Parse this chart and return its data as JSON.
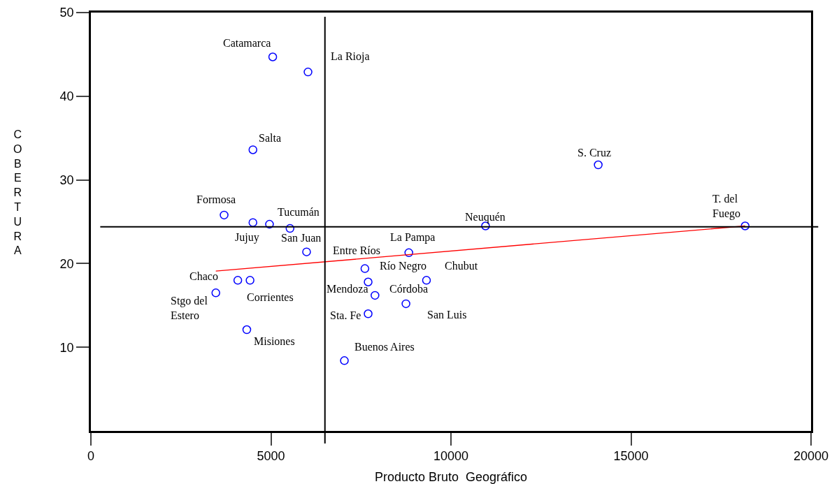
{
  "chart_data": {
    "type": "scatter",
    "xlabel": "Producto Bruto  Geográfico",
    "ylabel": "COBERTURA",
    "xlim": [
      0,
      20000
    ],
    "xticks": [
      0,
      5000,
      10000,
      15000,
      20000
    ],
    "ylim": [
      0,
      50
    ],
    "yticks": [
      10,
      20,
      30,
      40,
      50
    ],
    "grid": false,
    "series": [
      {
        "marker": "circle",
        "color": "#0000ff",
        "x": [
          5050,
          6030,
          4500,
          14090,
          3700,
          4960,
          4500,
          5530,
          10960,
          18170,
          5990,
          8830,
          7610,
          9320,
          4080,
          4420,
          7700,
          7890,
          3470,
          8750,
          7700,
          4330,
          7040
        ],
        "values": [
          44.7,
          42.9,
          33.6,
          31.8,
          25.8,
          24.7,
          24.9,
          24.2,
          24.5,
          24.5,
          21.4,
          21.3,
          19.4,
          18.0,
          18.0,
          18.0,
          17.8,
          16.2,
          16.5,
          15.2,
          14.0,
          12.1,
          8.4
        ]
      },
      {
        "type": "line",
        "color": "#ff0000",
        "x": [
          3470,
          18170
        ],
        "values": [
          19.1,
          24.5
        ]
      }
    ],
    "ref_lines": [
      {
        "axis": "x",
        "value": 6500,
        "color": "#000000"
      },
      {
        "axis": "y",
        "value": 24.4,
        "color": "#000000"
      }
    ],
    "annotations": [
      {
        "text": "Catamarca",
        "x": 5050,
        "y": 44.7
      },
      {
        "text": "La Rioja",
        "x": 6030,
        "y": 42.9
      },
      {
        "text": "Salta",
        "x": 4500,
        "y": 33.6
      },
      {
        "text": "S. Cruz",
        "x": 14090,
        "y": 31.8
      },
      {
        "text": "Formosa",
        "x": 3700,
        "y": 25.8
      },
      {
        "text": "Tucumán",
        "x": 4960,
        "y": 24.7
      },
      {
        "text": "Jujuy",
        "x": 4500,
        "y": 24.9
      },
      {
        "text": "San Juan",
        "x": 5530,
        "y": 24.2
      },
      {
        "text": "Neuquén",
        "x": 10960,
        "y": 24.5
      },
      {
        "text": "T. del\nFuego",
        "x": 18170,
        "y": 24.5
      },
      {
        "text": "Entre Ríos",
        "x": 5990,
        "y": 21.4
      },
      {
        "text": "La Pampa",
        "x": 8830,
        "y": 21.3
      },
      {
        "text": "Río Negro",
        "x": 7610,
        "y": 19.4
      },
      {
        "text": "Chubut",
        "x": 9320,
        "y": 18.0
      },
      {
        "text": "Chaco",
        "x": 4080,
        "y": 18.0
      },
      {
        "text": "Corrientes",
        "x": 4420,
        "y": 18.0
      },
      {
        "text": "Mendoza",
        "x": 7700,
        "y": 17.8
      },
      {
        "text": "Córdoba",
        "x": 7890,
        "y": 16.2
      },
      {
        "text": "Stgo del\nEstero",
        "x": 3470,
        "y": 16.5
      },
      {
        "text": "San Luis",
        "x": 8750,
        "y": 15.2
      },
      {
        "text": "Sta. Fe",
        "x": 7700,
        "y": 14.0
      },
      {
        "text": "Misiones",
        "x": 4330,
        "y": 12.1
      },
      {
        "text": "Buenos Aires",
        "x": 7040,
        "y": 8.4
      }
    ]
  }
}
